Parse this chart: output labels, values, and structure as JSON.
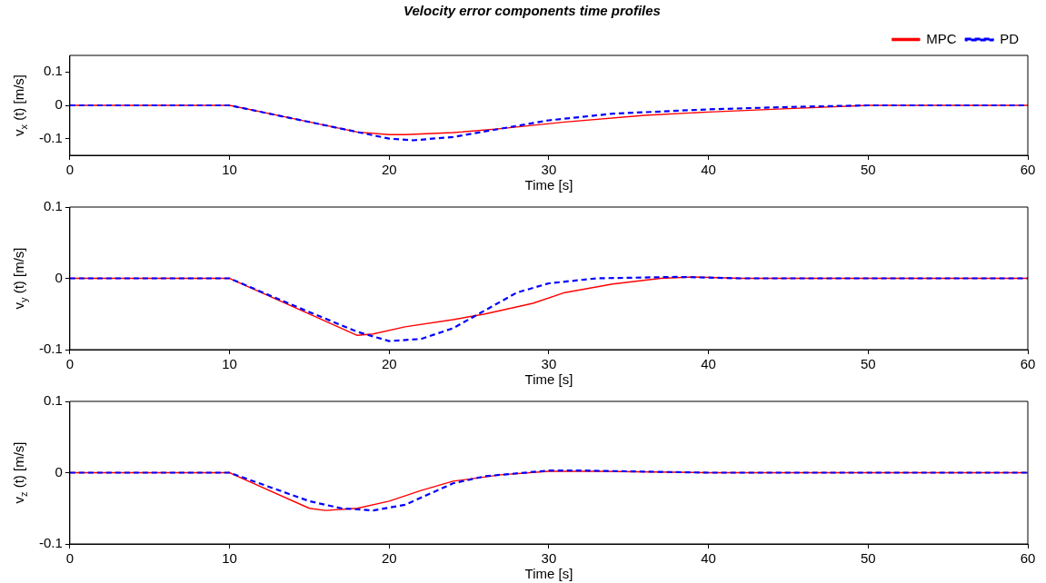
{
  "chart_data": [
    {
      "type": "line",
      "title": "Velocity error components time profiles",
      "xlabel": "Time [s]",
      "ylabel": "v$_{x}$ (t) [m/s]",
      "xlim": [
        0,
        60
      ],
      "xticks": [
        0,
        10,
        20,
        30,
        40,
        50,
        60
      ],
      "ylim": [
        -0.15,
        0.15
      ],
      "yticks": [
        -0.1,
        0,
        0.1
      ],
      "grid": false,
      "legend": "top right",
      "marker": "none",
      "series": [
        {
          "name": "MPC",
          "color": "#ff0000",
          "line_style": "solid",
          "x": [
            0,
            10,
            14,
            18,
            20,
            21,
            24,
            27,
            31,
            36,
            40,
            45,
            50,
            55,
            60
          ],
          "values": [
            0,
            0,
            -0.04,
            -0.08,
            -0.088,
            -0.088,
            -0.082,
            -0.07,
            -0.05,
            -0.03,
            -0.02,
            -0.01,
            0,
            0,
            0
          ]
        },
        {
          "name": "PD",
          "color": "#0000ff",
          "line_style": "dashed",
          "x": [
            0,
            10,
            14,
            18,
            20,
            21.5,
            24,
            27,
            30,
            34,
            40,
            45,
            50,
            55,
            60
          ],
          "values": [
            0,
            0,
            -0.04,
            -0.08,
            -0.1,
            -0.105,
            -0.095,
            -0.07,
            -0.045,
            -0.025,
            -0.012,
            -0.005,
            0,
            0,
            0
          ]
        }
      ]
    },
    {
      "type": "line",
      "xlabel": "Time [s]",
      "ylabel": "v$_{y}$ (t) [m/s]",
      "xlim": [
        0,
        60
      ],
      "xticks": [
        0,
        10,
        20,
        30,
        40,
        50,
        60
      ],
      "ylim": [
        -0.1,
        0.1
      ],
      "yticks": [
        -0.1,
        0,
        0.1
      ],
      "grid": false,
      "marker": "none",
      "series": [
        {
          "color": "#ff0000",
          "line_style": "solid",
          "x": [
            0,
            10,
            14,
            18,
            19,
            21,
            24,
            26,
            29,
            31,
            34,
            37,
            39,
            42,
            50,
            60
          ],
          "values": [
            0,
            0,
            -0.04,
            -0.08,
            -0.078,
            -0.068,
            -0.058,
            -0.05,
            -0.035,
            -0.02,
            -0.008,
            0,
            0.002,
            0,
            0,
            0
          ]
        },
        {
          "color": "#0000ff",
          "line_style": "dashed",
          "x": [
            0,
            10,
            14,
            18,
            20,
            22,
            24,
            26,
            28,
            30,
            33,
            38,
            42,
            50,
            60
          ],
          "values": [
            0,
            0,
            -0.038,
            -0.075,
            -0.088,
            -0.085,
            -0.07,
            -0.045,
            -0.02,
            -0.007,
            0,
            0.002,
            0,
            0,
            0
          ]
        }
      ]
    },
    {
      "type": "line",
      "xlabel": "Time [s]",
      "ylabel": "v$_{z}$ (t) [m/s]",
      "xlim": [
        0,
        60
      ],
      "xticks": [
        0,
        10,
        20,
        30,
        40,
        50,
        60
      ],
      "ylim": [
        -0.1,
        0.1
      ],
      "yticks": [
        -0.1,
        0,
        0.1
      ],
      "grid": false,
      "marker": "none",
      "series": [
        {
          "color": "#ff0000",
          "line_style": "solid",
          "x": [
            0,
            10,
            15,
            16,
            18,
            20,
            22,
            24,
            27,
            30,
            33,
            40,
            50,
            60
          ],
          "values": [
            0,
            0,
            -0.05,
            -0.053,
            -0.05,
            -0.04,
            -0.025,
            -0.012,
            -0.003,
            0.002,
            0.002,
            0,
            0,
            0
          ]
        },
        {
          "color": "#0000ff",
          "line_style": "dashed",
          "x": [
            0,
            10,
            15,
            17,
            19,
            21,
            22.5,
            24,
            26,
            30,
            32,
            40,
            50,
            60
          ],
          "values": [
            0,
            0,
            -0.04,
            -0.05,
            -0.053,
            -0.045,
            -0.03,
            -0.015,
            -0.005,
            0.003,
            0.003,
            0,
            0,
            0
          ]
        }
      ]
    }
  ]
}
